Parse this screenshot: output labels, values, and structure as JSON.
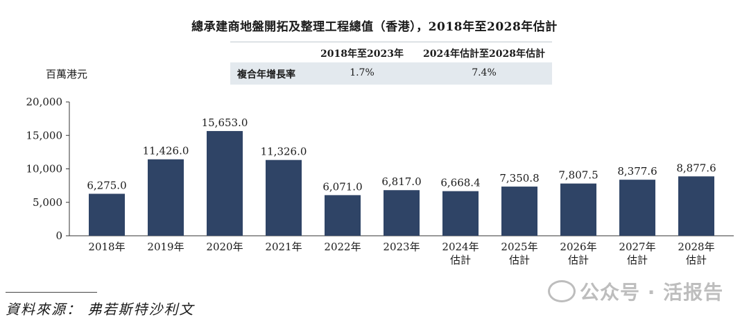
{
  "chart_data": {
    "type": "bar",
    "title": "總承建商地盤開拓及整理工程總值（香港），2018年至2028年估計",
    "ylabel": "百萬港元",
    "ylim": [
      0,
      20000
    ],
    "yticks": [
      "20,000",
      "15,000",
      "10,000",
      "5,000",
      "0"
    ],
    "ytick_values": [
      20000,
      15000,
      10000,
      5000,
      0
    ],
    "categories": [
      [
        "2018年"
      ],
      [
        "2019年"
      ],
      [
        "2020年"
      ],
      [
        "2021年"
      ],
      [
        "2022年"
      ],
      [
        "2023年"
      ],
      [
        "2024年",
        "估計"
      ],
      [
        "2025年",
        "估計"
      ],
      [
        "2026年",
        "估計"
      ],
      [
        "2027年",
        "估計"
      ],
      [
        "2028年",
        "估計"
      ]
    ],
    "values": [
      6275.0,
      11426.0,
      15653.0,
      11326.0,
      6071.0,
      6817.0,
      6668.4,
      7350.8,
      7807.5,
      8377.6,
      8877.6
    ],
    "value_labels": [
      "6,275.0",
      "11,426.0",
      "15,653.0",
      "11,326.0",
      "6,071.0",
      "6,817.0",
      "6,668.4",
      "7,350.8",
      "7,807.5",
      "8,377.6",
      "8,877.6"
    ],
    "bar_color": "#2f4466",
    "grid": false,
    "legend": "none"
  },
  "cagr_table": {
    "header_1": "2018年至2023年",
    "header_2": "2024年估計至2028年估計",
    "row_label": "複合年增長率",
    "value_1": "1.7%",
    "value_2": "7.4%"
  },
  "source": "資料來源： 弗若斯特沙利文",
  "watermark": "公众号 · 活报告"
}
